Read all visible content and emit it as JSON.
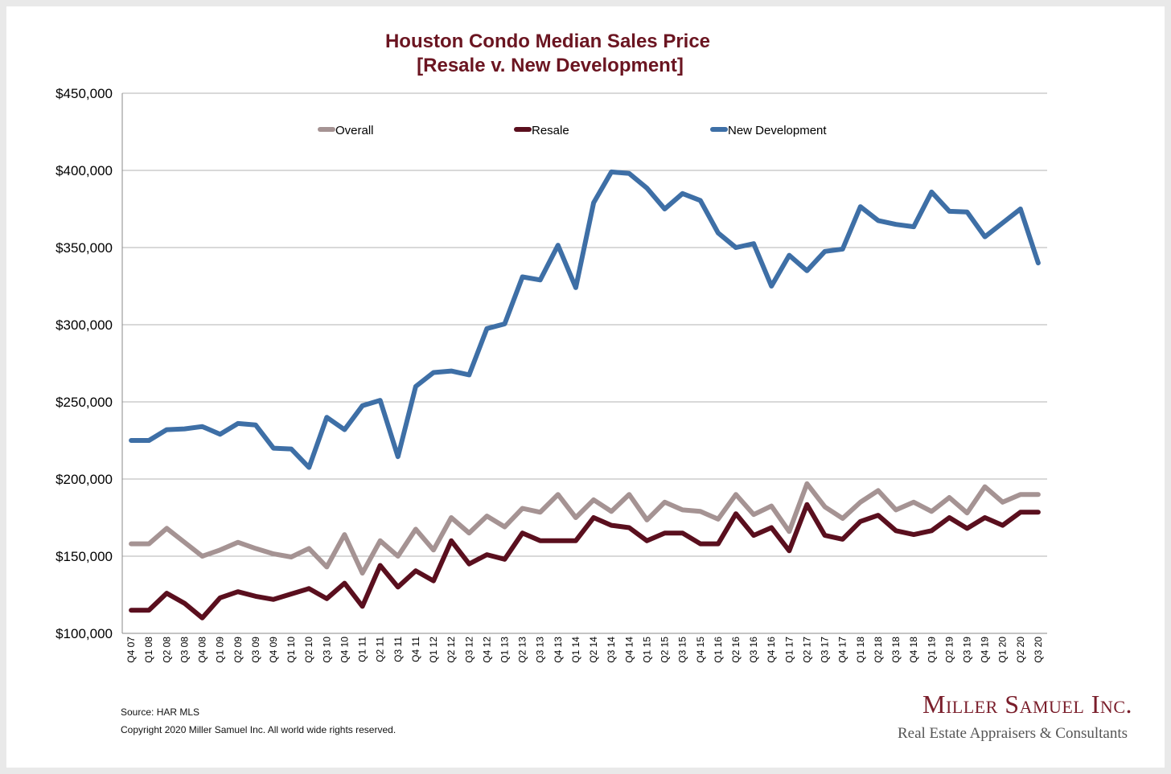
{
  "chart_data": {
    "type": "line",
    "title": "Houston Condo Median Sales Price",
    "subtitle": "[Resale v. New Development]",
    "xlabel": "",
    "ylabel": "",
    "ylim": [
      100000,
      450000
    ],
    "yticks": [
      100000,
      150000,
      200000,
      250000,
      300000,
      350000,
      400000,
      450000
    ],
    "ytick_labels": [
      "$100,000",
      "$150,000",
      "$200,000",
      "$250,000",
      "$300,000",
      "$350,000",
      "$400,000",
      "$450,000"
    ],
    "grid": true,
    "legend_position": "top",
    "categories": [
      "Q4 07",
      "Q1 08",
      "Q2 08",
      "Q3 08",
      "Q4 08",
      "Q1 09",
      "Q2 09",
      "Q3 09",
      "Q4 09",
      "Q1 10",
      "Q2 10",
      "Q3 10",
      "Q4 10",
      "Q1 11",
      "Q2 11",
      "Q3 11",
      "Q4 11",
      "Q1 12",
      "Q2 12",
      "Q3 12",
      "Q4 12",
      "Q1 13",
      "Q2 13",
      "Q3 13",
      "Q4 13",
      "Q1 14",
      "Q2 14",
      "Q3 14",
      "Q4 14",
      "Q1 15",
      "Q2 15",
      "Q3 15",
      "Q4 15",
      "Q1 16",
      "Q2 16",
      "Q3 16",
      "Q4 16",
      "Q1 17",
      "Q2 17",
      "Q3 17",
      "Q4 17",
      "Q1 18",
      "Q2 18",
      "Q3 18",
      "Q4 18",
      "Q1 19",
      "Q2 19",
      "Q3 19",
      "Q4 19",
      "Q1 20",
      "Q2 20",
      "Q3 20"
    ],
    "series": [
      {
        "name": "Overall",
        "color": "#a59393",
        "values": [
          158000,
          158000,
          168000,
          159000,
          150000,
          154000,
          159000,
          155000,
          151500,
          149500,
          155000,
          143000,
          164000,
          139000,
          160000,
          150000,
          167500,
          154000,
          175000,
          165000,
          176000,
          169000,
          181000,
          178500,
          190000,
          175000,
          186500,
          179000,
          190000,
          173500,
          185000,
          180000,
          179000,
          174000,
          190000,
          177000,
          182500,
          166000,
          197000,
          182000,
          174500,
          185000,
          192500,
          180000,
          185000,
          179000,
          188000,
          178000,
          195000,
          185000,
          190000,
          190000
        ]
      },
      {
        "name": "Resale",
        "color": "#5a0f1e",
        "values": [
          115000,
          115000,
          126000,
          119500,
          110000,
          123000,
          127000,
          124000,
          122000,
          125500,
          129000,
          122500,
          132500,
          117500,
          144000,
          130000,
          140500,
          134000,
          160000,
          145000,
          151000,
          148000,
          165000,
          160000,
          160000,
          160000,
          175000,
          170000,
          168500,
          160000,
          165000,
          165000,
          158000,
          158000,
          177500,
          163500,
          168500,
          153500,
          183500,
          163500,
          161000,
          172500,
          176500,
          166500,
          164000,
          166500,
          175000,
          168000,
          175000,
          170000,
          178500,
          178500
        ]
      },
      {
        "name": "New Development",
        "color": "#3e6fa6",
        "values": [
          225000,
          225000,
          232000,
          232500,
          234000,
          229000,
          236000,
          235000,
          220000,
          219500,
          207500,
          240000,
          232000,
          247500,
          251000,
          214500,
          260000,
          269000,
          270000,
          267500,
          297500,
          300500,
          331000,
          329000,
          351500,
          324000,
          379000,
          399000,
          398000,
          388500,
          375000,
          385000,
          380500,
          359500,
          350000,
          352500,
          325000,
          345000,
          335000,
          347500,
          349000,
          376500,
          367500,
          365000,
          363500,
          386000,
          373500,
          373000,
          357000,
          366000,
          375000,
          340000
        ]
      }
    ]
  },
  "footer": {
    "source": "Source: HAR MLS",
    "copyright": "Copyright 2020 Miller Samuel Inc.  All world wide rights reserved."
  },
  "logo": {
    "name": "Miller Samuel Inc.",
    "tagline": "Real Estate Appraisers & Consultants"
  }
}
